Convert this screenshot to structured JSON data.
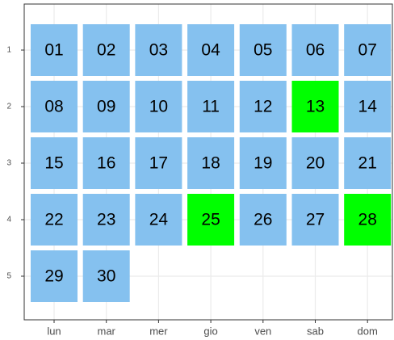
{
  "chart_data": {
    "type": "tile",
    "categories": [
      "lun",
      "mar",
      "mer",
      "gio",
      "ven",
      "sab",
      "dom"
    ],
    "yticks": [
      1,
      2,
      3,
      4,
      5
    ],
    "grid": true,
    "cells": [
      {
        "label": "01",
        "weekday": 0,
        "week": 1,
        "color": "#85c1ef"
      },
      {
        "label": "02",
        "weekday": 1,
        "week": 1,
        "color": "#85c1ef"
      },
      {
        "label": "03",
        "weekday": 2,
        "week": 1,
        "color": "#85c1ef"
      },
      {
        "label": "04",
        "weekday": 3,
        "week": 1,
        "color": "#85c1ef"
      },
      {
        "label": "05",
        "weekday": 4,
        "week": 1,
        "color": "#85c1ef"
      },
      {
        "label": "06",
        "weekday": 5,
        "week": 1,
        "color": "#85c1ef"
      },
      {
        "label": "07",
        "weekday": 6,
        "week": 1,
        "color": "#85c1ef"
      },
      {
        "label": "08",
        "weekday": 0,
        "week": 2,
        "color": "#85c1ef"
      },
      {
        "label": "09",
        "weekday": 1,
        "week": 2,
        "color": "#85c1ef"
      },
      {
        "label": "10",
        "weekday": 2,
        "week": 2,
        "color": "#85c1ef"
      },
      {
        "label": "11",
        "weekday": 3,
        "week": 2,
        "color": "#85c1ef"
      },
      {
        "label": "12",
        "weekday": 4,
        "week": 2,
        "color": "#85c1ef"
      },
      {
        "label": "13",
        "weekday": 5,
        "week": 2,
        "color": "#00ff00"
      },
      {
        "label": "14",
        "weekday": 6,
        "week": 2,
        "color": "#85c1ef"
      },
      {
        "label": "15",
        "weekday": 0,
        "week": 3,
        "color": "#85c1ef"
      },
      {
        "label": "16",
        "weekday": 1,
        "week": 3,
        "color": "#85c1ef"
      },
      {
        "label": "17",
        "weekday": 2,
        "week": 3,
        "color": "#85c1ef"
      },
      {
        "label": "18",
        "weekday": 3,
        "week": 3,
        "color": "#85c1ef"
      },
      {
        "label": "19",
        "weekday": 4,
        "week": 3,
        "color": "#85c1ef"
      },
      {
        "label": "20",
        "weekday": 5,
        "week": 3,
        "color": "#85c1ef"
      },
      {
        "label": "21",
        "weekday": 6,
        "week": 3,
        "color": "#85c1ef"
      },
      {
        "label": "22",
        "weekday": 0,
        "week": 4,
        "color": "#85c1ef"
      },
      {
        "label": "23",
        "weekday": 1,
        "week": 4,
        "color": "#85c1ef"
      },
      {
        "label": "24",
        "weekday": 2,
        "week": 4,
        "color": "#85c1ef"
      },
      {
        "label": "25",
        "weekday": 3,
        "week": 4,
        "color": "#00ff00"
      },
      {
        "label": "26",
        "weekday": 4,
        "week": 4,
        "color": "#85c1ef"
      },
      {
        "label": "27",
        "weekday": 5,
        "week": 4,
        "color": "#85c1ef"
      },
      {
        "label": "28",
        "weekday": 6,
        "week": 4,
        "color": "#00ff00"
      },
      {
        "label": "29",
        "weekday": 0,
        "week": 5,
        "color": "#85c1ef"
      },
      {
        "label": "30",
        "weekday": 1,
        "week": 5,
        "color": "#85c1ef"
      }
    ]
  }
}
